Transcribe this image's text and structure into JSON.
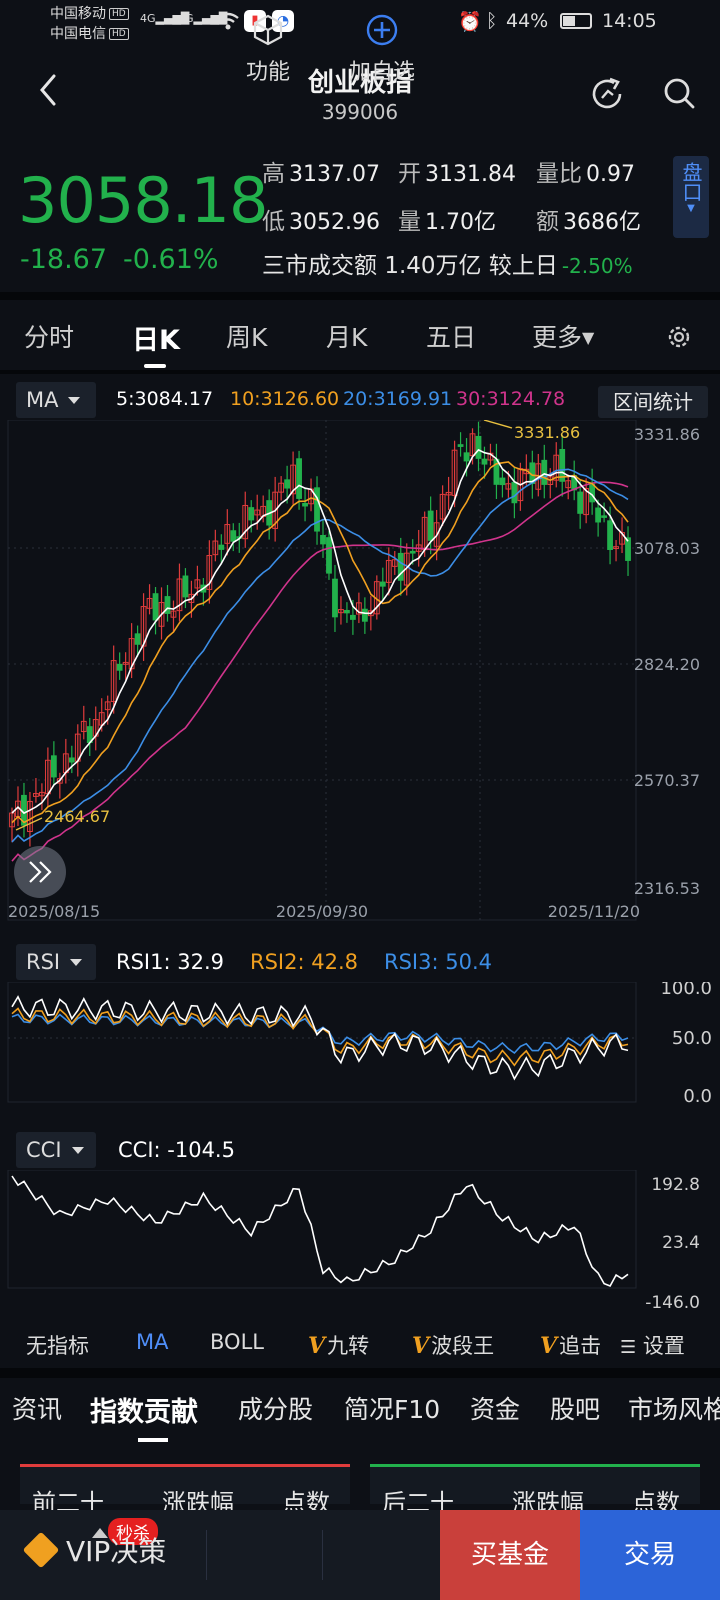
{
  "status": {
    "carrier1": "中国移动",
    "carrier2": "中国电信",
    "hd": "HD",
    "net": "4G",
    "battery": "44%",
    "time": "14:05"
  },
  "header": {
    "title": "创业板指",
    "code": "399006"
  },
  "quote": {
    "price": "3058.18",
    "change": "-18.67",
    "change_pct": "-0.61%",
    "high_label": "高",
    "high": "3137.07",
    "open_label": "开",
    "open": "3131.84",
    "vol_ratio_label": "量比",
    "vol_ratio": "0.97",
    "low_label": "低",
    "low": "3052.96",
    "volume_label": "量",
    "volume": "1.70亿",
    "amount_label": "额",
    "amount": "3686亿",
    "turnover_label": "三市成交额",
    "turnover": "1.40万亿",
    "vs_label": "较上日",
    "vs_pct": "-2.50%",
    "pankou": "盘口"
  },
  "tabs": [
    "分时",
    "日K",
    "周K",
    "月K",
    "五日",
    "更多"
  ],
  "ma": {
    "type": "MA",
    "ma5": "5:3084.17",
    "ma10": "10:3126.60",
    "ma20": "20:3169.91",
    "ma30": "30:3124.78",
    "range_btn": "区间统计",
    "high_mark": "3331.86",
    "low_mark": "2464.67",
    "y_ticks": [
      "3331.86",
      "3078.03",
      "2824.20",
      "2570.37",
      "2316.53"
    ],
    "dates": [
      "2025/08/15",
      "2025/09/30",
      "2025/11/20"
    ]
  },
  "rsi": {
    "type": "RSI",
    "rsi1": "RSI1: 32.9",
    "rsi2": "RSI2: 42.8",
    "rsi3": "RSI3: 50.4",
    "ticks": [
      "100.0",
      "50.0",
      "0.0"
    ]
  },
  "cci": {
    "type": "CCI",
    "value": "CCI: -104.5",
    "ticks": [
      "192.8",
      "23.4",
      "-146.0"
    ]
  },
  "indicators": [
    "无指标",
    "MA",
    "BOLL",
    "九转",
    "波段王",
    "追击",
    "设置"
  ],
  "indicator_v": "V",
  "sections": [
    "资讯",
    "指数贡献",
    "成分股",
    "简况F10",
    "资金",
    "股吧",
    "市场风格"
  ],
  "panel_left": [
    "前二十",
    "涨跌幅",
    "点数"
  ],
  "panel_right": [
    "后二十",
    "涨跌幅",
    "点数"
  ],
  "bottom": {
    "vip": "VIP决策",
    "flash": "秒杀",
    "func": "功能",
    "watch": "加自选",
    "buy_fund": "买基金",
    "trade": "交易"
  },
  "colors": {
    "up": "#e03c3c",
    "down": "#22b14c",
    "ma5": "#ffffff",
    "ma10": "#f0a020",
    "ma20": "#3c8ee6",
    "ma30": "#d0348c"
  }
}
